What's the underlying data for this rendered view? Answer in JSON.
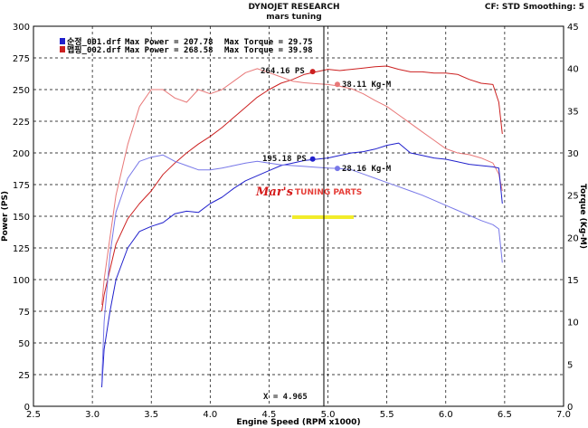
{
  "header": {
    "title": "DYNOJET RESEARCH",
    "subtitle": "mars tuning",
    "settings": "CF: STD  Smoothing: 5"
  },
  "legend": {
    "rows": [
      {
        "file": "순정_001.drf",
        "power_label": "Max Power = 207.78",
        "torque_label": "Max Torque = 29.75",
        "color": "#2020cc"
      },
      {
        "file": "맵핑_002.drf",
        "power_label": "Max Power = 268.58",
        "torque_label": "Max Torque = 39.98",
        "color": "#cc2020"
      }
    ]
  },
  "annotations": {
    "red_power": "264.16 PS",
    "red_torque": "38.11 Kg-M",
    "blue_power": "195.18 PS",
    "blue_torque": "28.16 Kg-M",
    "cursor": "X = 4.965"
  },
  "watermark": {
    "brand": "Mar's",
    "tag": "TUNING PARTS"
  },
  "chart_data": {
    "type": "line",
    "xlabel": "Engine Speed (RPM x1000)",
    "ylabel": "Power (PS)",
    "ylabel_right": "Torque (Kg-M)",
    "xlim": [
      2.5,
      7.0
    ],
    "ylim": [
      0,
      300
    ],
    "ylim_right": [
      0,
      45
    ],
    "x_ticks": [
      "2.5",
      "3.0",
      "3.5",
      "4.0",
      "4.5",
      "5.0",
      "5.5",
      "6.0",
      "6.5",
      "7.0"
    ],
    "y_ticks": [
      "0",
      "25",
      "50",
      "75",
      "100",
      "125",
      "150",
      "175",
      "200",
      "225",
      "250",
      "275",
      "300"
    ],
    "y_ticks_right": [
      "0",
      "5",
      "10",
      "15",
      "20",
      "25",
      "30",
      "35",
      "40",
      "45"
    ],
    "grid": true,
    "cursor_x": 4.965,
    "series": [
      {
        "name": "맵핑_002.drf Power",
        "axis": "left",
        "color": "#cc2020",
        "x": [
          3.08,
          3.1,
          3.15,
          3.2,
          3.3,
          3.4,
          3.5,
          3.6,
          3.7,
          3.8,
          3.9,
          4.0,
          4.1,
          4.2,
          4.3,
          4.4,
          4.5,
          4.6,
          4.7,
          4.8,
          4.9,
          5.0,
          5.1,
          5.2,
          5.3,
          5.4,
          5.5,
          5.6,
          5.7,
          5.8,
          5.9,
          6.0,
          6.1,
          6.2,
          6.3,
          6.4,
          6.45,
          6.48
        ],
        "y": [
          75,
          88,
          108,
          128,
          148,
          160,
          170,
          183,
          192,
          200,
          207,
          213,
          220,
          228,
          236,
          244,
          250,
          255,
          258,
          262,
          264,
          266,
          265,
          266,
          267,
          268,
          268.58,
          266,
          264,
          264,
          263,
          263,
          262,
          258,
          255,
          254,
          240,
          215
        ]
      },
      {
        "name": "맵핑_002.drf Torque",
        "axis": "right",
        "color": "#e87878",
        "x": [
          3.08,
          3.1,
          3.15,
          3.2,
          3.3,
          3.4,
          3.5,
          3.6,
          3.7,
          3.8,
          3.9,
          4.0,
          4.1,
          4.2,
          4.3,
          4.4,
          4.5,
          4.6,
          4.7,
          4.8,
          4.9,
          5.0,
          5.1,
          5.2,
          5.3,
          5.4,
          5.5,
          5.6,
          5.7,
          5.8,
          5.9,
          6.0,
          6.1,
          6.2,
          6.3,
          6.4,
          6.45,
          6.48
        ],
        "y": [
          12,
          15,
          20,
          25,
          31,
          35.5,
          37.5,
          37.5,
          36.5,
          36,
          37.5,
          37,
          37.5,
          38.5,
          39.5,
          39.98,
          39.5,
          39,
          38.5,
          38.3,
          38.2,
          38.1,
          37.9,
          37.6,
          37,
          36.2,
          35.5,
          34.5,
          33.5,
          32.5,
          31.5,
          30.5,
          30,
          29.8,
          29.4,
          28.8,
          27.5,
          25.5
        ]
      },
      {
        "name": "순정_001.drf Power",
        "axis": "left",
        "color": "#2020cc",
        "x": [
          3.08,
          3.1,
          3.15,
          3.2,
          3.3,
          3.4,
          3.5,
          3.6,
          3.7,
          3.8,
          3.9,
          4.0,
          4.1,
          4.2,
          4.3,
          4.4,
          4.5,
          4.6,
          4.7,
          4.8,
          4.9,
          5.0,
          5.1,
          5.2,
          5.3,
          5.4,
          5.5,
          5.6,
          5.7,
          5.8,
          5.9,
          6.0,
          6.1,
          6.2,
          6.3,
          6.4,
          6.45,
          6.48
        ],
        "y": [
          15,
          45,
          75,
          100,
          125,
          138,
          142,
          145,
          152,
          154,
          153,
          160,
          165,
          172,
          178,
          182,
          186,
          190,
          192,
          194,
          195,
          196,
          198,
          200,
          201,
          203,
          206,
          207.78,
          200,
          198,
          196,
          195,
          193,
          191,
          190,
          189,
          188,
          160
        ]
      },
      {
        "name": "순정_001.drf Torque",
        "axis": "right",
        "color": "#7878e8",
        "x": [
          3.08,
          3.1,
          3.15,
          3.2,
          3.3,
          3.4,
          3.5,
          3.6,
          3.7,
          3.8,
          3.9,
          4.0,
          4.1,
          4.2,
          4.3,
          4.4,
          4.5,
          4.6,
          4.7,
          4.8,
          4.9,
          5.0,
          5.1,
          5.2,
          5.3,
          5.4,
          5.5,
          5.6,
          5.7,
          5.8,
          5.9,
          6.0,
          6.1,
          6.2,
          6.3,
          6.4,
          6.45,
          6.48
        ],
        "y": [
          3,
          10,
          18,
          23,
          27,
          29,
          29.5,
          29.75,
          29,
          28.5,
          28,
          28,
          28.2,
          28.5,
          28.8,
          29,
          28.8,
          28.6,
          28.5,
          28.4,
          28.3,
          28.2,
          28.16,
          28,
          27.5,
          27,
          26.5,
          26,
          25.5,
          25,
          24.4,
          23.8,
          23.2,
          22.6,
          22,
          21.5,
          21,
          17
        ]
      }
    ],
    "markers": [
      {
        "series": 0,
        "x": 4.87,
        "y": 264.16
      },
      {
        "series": 1,
        "x": 5.08,
        "y": 38.11
      },
      {
        "series": 2,
        "x": 4.87,
        "y": 195.18
      },
      {
        "series": 3,
        "x": 5.08,
        "y": 28.16
      }
    ]
  }
}
